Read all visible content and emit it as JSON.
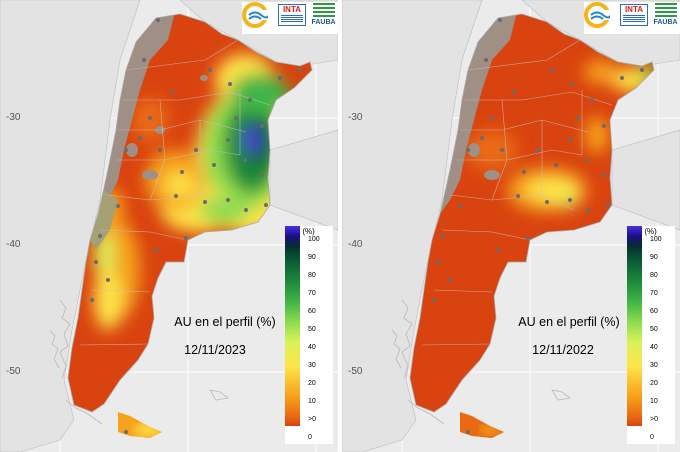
{
  "legend": {
    "title": "AU (%)",
    "ticks": [
      "100",
      "90",
      "80",
      "70",
      "60",
      "50",
      "40",
      "30",
      "20",
      "10",
      ">0",
      "0"
    ],
    "colors": [
      "#d9430f",
      "#ea6a14",
      "#f6a21c",
      "#fde44a",
      "#d8f25a",
      "#8edb4e",
      "#41b546",
      "#1d8a3a",
      "#0b5e37",
      "#042f2f",
      "#1b0e8a",
      "#4c2fe0"
    ]
  },
  "y_axis_labels": [
    "-30",
    "-40",
    "-50"
  ],
  "logos": {
    "inta_text": "INTA",
    "fauba_text": "FAUBA"
  },
  "maps": [
    {
      "title": "AU en el perfil (%)",
      "date": "12/11/2023"
    },
    {
      "title": "AU en el perfil (%)",
      "date": "12/11/2022"
    }
  ]
}
